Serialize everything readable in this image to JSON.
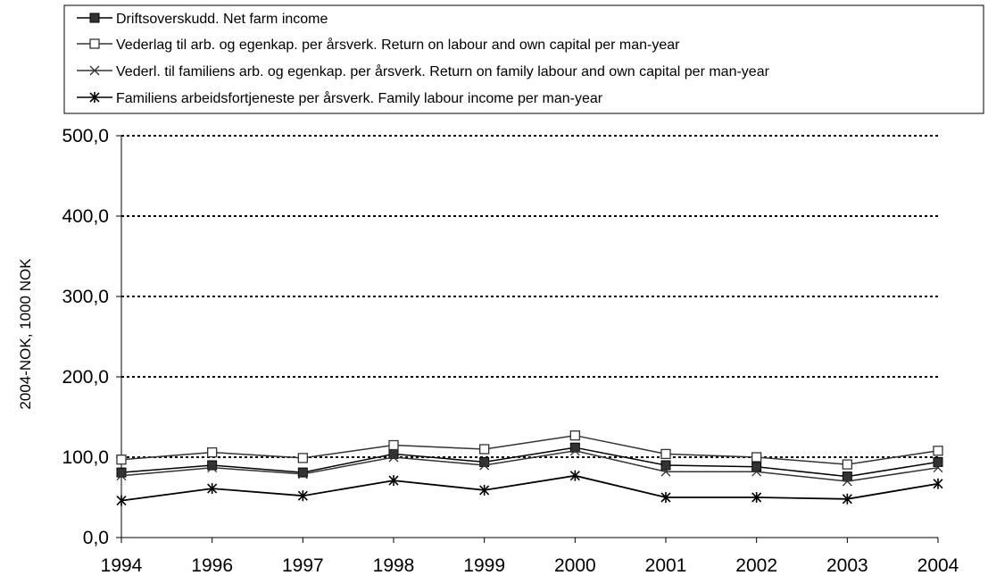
{
  "chart_data": {
    "type": "line",
    "title": "",
    "xlabel": "",
    "ylabel": "2004-NOK, 1000 NOK",
    "categories": [
      "1994",
      "1996",
      "1997",
      "1998",
      "1999",
      "2000",
      "2001",
      "2002",
      "2003",
      "2004"
    ],
    "ylim": [
      0,
      500
    ],
    "yticks": [
      "0,0",
      "100,0",
      "200,0",
      "300,0",
      "400,0",
      "500,0"
    ],
    "grid": "dotted horizontal",
    "legend_position": "top",
    "series": [
      {
        "name": "Driftsoverskudd. Net farm income",
        "marker": "filled-square",
        "values": [
          81,
          90,
          81,
          104,
          94,
          112,
          90,
          88,
          76,
          94
        ]
      },
      {
        "name": "Vederlag til arb. og egenkap. per årsverk. Return on labour and own capital per man-year",
        "marker": "open-square",
        "values": [
          97,
          106,
          99,
          115,
          110,
          127,
          104,
          100,
          91,
          108
        ]
      },
      {
        "name": "Vederl. til familiens arb. og egenkap. per årsverk. Return on family labour and own capital per man-year",
        "marker": "x",
        "values": [
          77,
          87,
          79,
          100,
          90,
          108,
          82,
          82,
          70,
          87
        ]
      },
      {
        "name": "Familiens arbeidsfortjeneste per årsverk. Family labour income per man-year",
        "marker": "star",
        "values": [
          46,
          61,
          52,
          71,
          59,
          77,
          50,
          50,
          48,
          67
        ]
      }
    ],
    "reference_line": {
      "value": 100,
      "style": "dotted"
    }
  }
}
